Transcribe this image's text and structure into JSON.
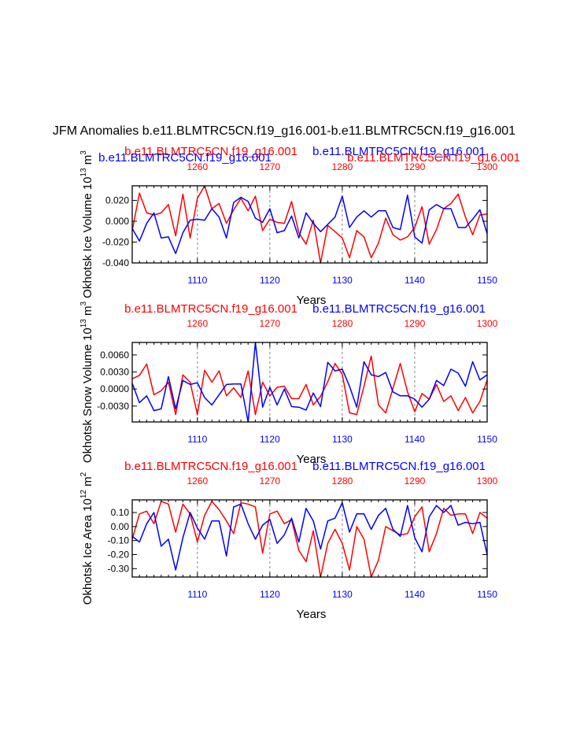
{
  "main_title": "JFM Anomalies b.e11.BLMTRC5CN.f19_g16.001-b.e11.BLMTRC5CN.f19_g16.001",
  "colors": {
    "series_a": "#ff0000",
    "series_b": "#0000ff",
    "axis": "#000000",
    "grid": "#999999"
  },
  "chart_data": [
    {
      "type": "line",
      "ylabel": "Okhotsk Ice Volume 10^13 m^3",
      "ylabel_main": "Okhotsk Ice Volume 10",
      "ylabel_exp": "13",
      "ylabel_unit": " m",
      "ylabel_unit_exp": "3",
      "xlabel": "Years",
      "top_labels": [
        {
          "text": "b.e11.BLMTRC5CN.f19_g16.001",
          "color": "red"
        },
        {
          "text": "b.e11.BLMTRC5CN.f19_g16.001",
          "color": "blue"
        },
        {
          "text": "b.e11.BLMTRC5CN.f19_g16.001",
          "color": "blue"
        },
        {
          "text": "b.e11.BLMTRC5CN.f19_g16.001",
          "color": "red"
        }
      ],
      "x_bottom": {
        "range": [
          1101,
          1150
        ],
        "ticks": [
          "1110",
          "1120",
          "1130",
          "1140",
          "1150"
        ]
      },
      "x_top": {
        "range": [
          1251,
          1300
        ],
        "ticks": [
          "1260",
          "1270",
          "1280",
          "1290",
          "1300"
        ]
      },
      "ylim": [
        -0.04,
        0.034
      ],
      "yticks": [
        0.02,
        0.0,
        -0.02,
        -0.04
      ],
      "ytick_labels": [
        "0.020",
        "0.000",
        "-0.020",
        "-0.040"
      ],
      "grid_x": [
        1110,
        1120,
        1130,
        1140
      ],
      "series": [
        {
          "color": "red",
          "axis": "top",
          "values": [
            -0.009,
            0.027,
            0.008,
            0.006,
            0.008,
            0.016,
            -0.014,
            0.026,
            -0.016,
            0.022,
            0.034,
            0.012,
            0.017,
            -0.002,
            0.011,
            0.022,
            0.01,
            0.024,
            -0.009,
            0.002,
            -0.001,
            -0.002,
            0.019,
            -0.011,
            -0.022,
            0.001,
            -0.04,
            -0.004,
            -0.01,
            -0.016,
            -0.035,
            -0.009,
            -0.015,
            -0.035,
            -0.021,
            0.003,
            -0.013,
            -0.018,
            -0.015,
            -0.006,
            0.014,
            -0.022,
            -0.008,
            0.012,
            0.017,
            0.026,
            0.004,
            -0.013,
            0.006,
            0.007
          ]
        },
        {
          "color": "blue",
          "axis": "bottom",
          "values": [
            -0.007,
            -0.019,
            -0.002,
            0.008,
            -0.016,
            -0.015,
            -0.031,
            -0.011,
            0.001,
            0.002,
            0.001,
            0.012,
            0.004,
            -0.016,
            0.018,
            0.023,
            0.019,
            0.003,
            -0.001,
            0.012,
            -0.011,
            -0.009,
            0.005,
            -0.016,
            0.008,
            -0.002,
            -0.01,
            -0.003,
            0.004,
            0.024,
            -0.006,
            0.004,
            0.01,
            0.004,
            0.01,
            0.01,
            -0.006,
            -0.008,
            0.025,
            -0.015,
            -0.021,
            0.011,
            0.016,
            0.012,
            0.012,
            -0.006,
            -0.006,
            0.002,
            0.011,
            -0.012
          ]
        }
      ]
    },
    {
      "type": "line",
      "ylabel": "Okhotsk Snow Volume 10^13 m^3",
      "ylabel_main": "Okhotsk Snow Volume 10",
      "ylabel_exp": "13",
      "ylabel_unit": " m",
      "ylabel_unit_exp": "3",
      "xlabel": "Years",
      "top_labels": [
        {
          "text": "b.e11.BLMTRC5CN.f19_g16.001",
          "color": "red"
        },
        {
          "text": "b.e11.BLMTRC5CN.f19_g16.001",
          "color": "blue"
        }
      ],
      "x_bottom": {
        "range": [
          1101,
          1150
        ],
        "ticks": [
          "1110",
          "1120",
          "1130",
          "1140",
          "1150"
        ]
      },
      "x_top": {
        "range": [
          1251,
          1300
        ],
        "ticks": [
          "1260",
          "1270",
          "1280",
          "1290",
          "1300"
        ]
      },
      "ylim": [
        -0.0058,
        0.0082
      ],
      "yticks": [
        0.006,
        0.003,
        0.0,
        -0.003
      ],
      "ytick_labels": [
        "0.0060",
        "0.0030",
        "0.0000",
        "-0.0030"
      ],
      "grid_x": [
        1110,
        1120,
        1130,
        1140
      ],
      "series": [
        {
          "color": "red",
          "axis": "top",
          "values": [
            0.0018,
            0.0024,
            0.0044,
            -0.001,
            -0.0003,
            0.0012,
            -0.0045,
            0.0025,
            0.0012,
            -0.0045,
            0.0033,
            0.0012,
            0.0032,
            -0.0012,
            0.0002,
            -0.0015,
            0.0032,
            -0.0045,
            0.0012,
            -0.0012,
            0.0003,
            0.0005,
            -0.0017,
            -0.0017,
            0.0008,
            -0.0028,
            -0.0013,
            0.0013,
            0.0045,
            0.0026,
            -0.0042,
            -0.0045,
            0.0005,
            0.0058,
            -0.0028,
            -0.0042,
            0.0001,
            0.0045,
            -0.0005,
            -0.004,
            -0.0008,
            -0.0018,
            0.0008,
            -0.0022,
            -0.0012,
            -0.0038,
            -0.0015,
            -0.0042,
            -0.0022,
            0.0016
          ]
        },
        {
          "color": "blue",
          "axis": "bottom",
          "values": [
            0.001,
            -0.0024,
            -0.0012,
            -0.0038,
            -0.0035,
            0.0022,
            -0.0035,
            0.0015,
            0.0008,
            0.0011,
            -0.0015,
            -0.0028,
            -0.001,
            0.0008,
            0.0009,
            0.0009,
            -0.0058,
            0.0082,
            -0.0032,
            0.0003,
            -0.0028,
            0.0,
            -0.0031,
            -0.0032,
            -0.0037,
            -0.0007,
            -0.0031,
            0.0047,
            0.0032,
            0.0035,
            0.0005,
            -0.0032,
            0.0048,
            0.0025,
            0.0022,
            0.0029,
            -0.0005,
            -0.0012,
            -0.0012,
            -0.0018,
            -0.0032,
            -0.0018,
            0.0015,
            0.0006,
            0.0035,
            0.0028,
            0.0005,
            0.0048,
            0.0016,
            0.0025
          ]
        }
      ]
    },
    {
      "type": "line",
      "ylabel": "Okhotsk Ice Area 10^12 m^2",
      "ylabel_main": "Okhotsk Ice Area 10",
      "ylabel_exp": "12",
      "ylabel_unit": " m",
      "ylabel_unit_exp": "2",
      "xlabel": "Years",
      "top_labels": [
        {
          "text": "b.e11.BLMTRC5CN.f19_g16.001",
          "color": "red"
        },
        {
          "text": "b.e11.BLMTRC5CN.f19_g16.001",
          "color": "blue"
        }
      ],
      "x_bottom": {
        "range": [
          1101,
          1150
        ],
        "ticks": [
          "1110",
          "1120",
          "1130",
          "1140",
          "1150"
        ]
      },
      "x_top": {
        "range": [
          1251,
          1300
        ],
        "ticks": [
          "1260",
          "1270",
          "1280",
          "1290",
          "1300"
        ]
      },
      "ylim": [
        -0.36,
        0.19
      ],
      "yticks": [
        0.1,
        0.0,
        -0.1,
        -0.2,
        -0.3
      ],
      "ytick_labels": [
        "0.10",
        "0.00",
        "-0.10",
        "-0.20",
        "-0.30"
      ],
      "grid_x": [
        1110,
        1120,
        1130,
        1140
      ],
      "series": [
        {
          "color": "red",
          "axis": "top",
          "values": [
            -0.09,
            0.09,
            0.11,
            0.02,
            0.18,
            0.16,
            -0.04,
            0.16,
            0.09,
            -0.11,
            0.08,
            0.18,
            0.12,
            0.04,
            -0.05,
            0.17,
            0.16,
            0.14,
            -0.19,
            0.09,
            0.11,
            0.02,
            0.05,
            -0.17,
            -0.25,
            -0.03,
            -0.36,
            -0.12,
            -0.02,
            -0.12,
            -0.31,
            0.0,
            -0.09,
            -0.36,
            -0.24,
            0.0,
            -0.03,
            -0.06,
            -0.05,
            0.07,
            0.14,
            -0.18,
            -0.05,
            0.13,
            0.08,
            0.09,
            0.09,
            -0.05,
            0.1,
            0.06
          ]
        },
        {
          "color": "blue",
          "axis": "bottom",
          "values": [
            -0.07,
            -0.11,
            0.02,
            0.1,
            -0.14,
            -0.09,
            -0.31,
            -0.08,
            0.1,
            -0.01,
            -0.09,
            0.04,
            0.04,
            -0.21,
            0.14,
            0.16,
            0.02,
            -0.09,
            0.01,
            0.05,
            -0.12,
            -0.06,
            0.06,
            -0.11,
            0.13,
            0.04,
            -0.16,
            0.04,
            0.06,
            0.17,
            -0.04,
            0.09,
            0.09,
            -0.02,
            0.08,
            0.13,
            -0.02,
            -0.07,
            0.15,
            -0.08,
            -0.18,
            0.07,
            0.15,
            0.1,
            0.15,
            0.01,
            0.03,
            0.02,
            0.03,
            -0.2
          ]
        }
      ]
    }
  ]
}
